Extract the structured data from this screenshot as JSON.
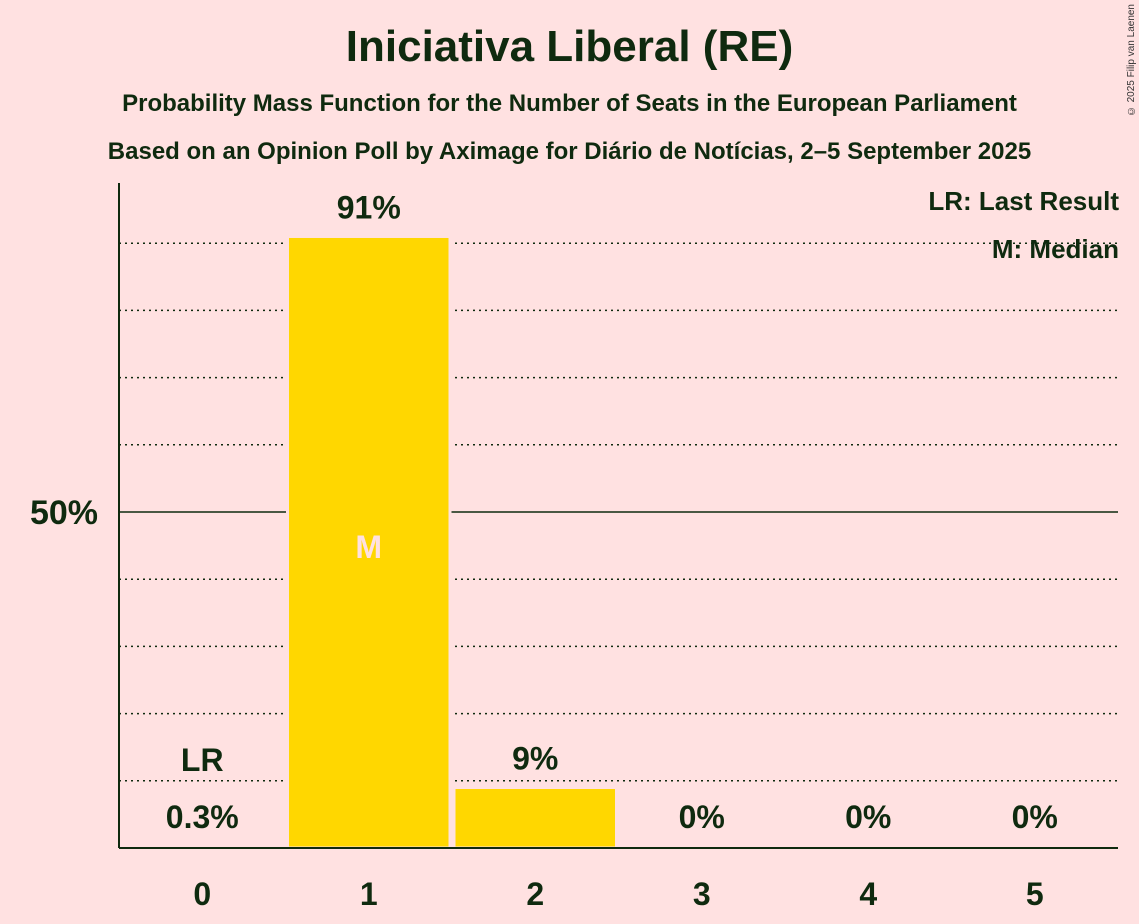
{
  "header": {
    "title": "Iniciativa Liberal (RE)",
    "subtitle1": "Probability Mass Function for the Number of Seats in the European Parliament",
    "subtitle2": "Based on an Opinion Poll by Aximage for Diário de Notícias, 2–5 September 2025",
    "copyright": "© 2025 Filip van Laenen"
  },
  "legend": {
    "last_result": "LR: Last Result",
    "median": "M: Median"
  },
  "colors": {
    "background": "#FFE1E1",
    "bar": "#FFD700",
    "text": "#0F2A0F",
    "median_label": "#FFE1E1"
  },
  "chart_data": {
    "type": "bar",
    "title": "Iniciativa Liberal (RE)",
    "xlabel": "",
    "ylabel": "",
    "categories": [
      "0",
      "1",
      "2",
      "3",
      "4",
      "5"
    ],
    "values": [
      0.3,
      91,
      9,
      0,
      0,
      0
    ],
    "value_labels": [
      "0.3%",
      "91%",
      "9%",
      "0%",
      "0%",
      "0%"
    ],
    "ylim": [
      0,
      100
    ],
    "y_tick_label": "50%",
    "y_tick_value": 50,
    "gridlines": [
      10,
      20,
      30,
      40,
      60,
      70,
      80,
      90
    ],
    "last_result_seat": 0,
    "last_result_label": "LR",
    "median_seat": 1,
    "median_label": "M"
  }
}
